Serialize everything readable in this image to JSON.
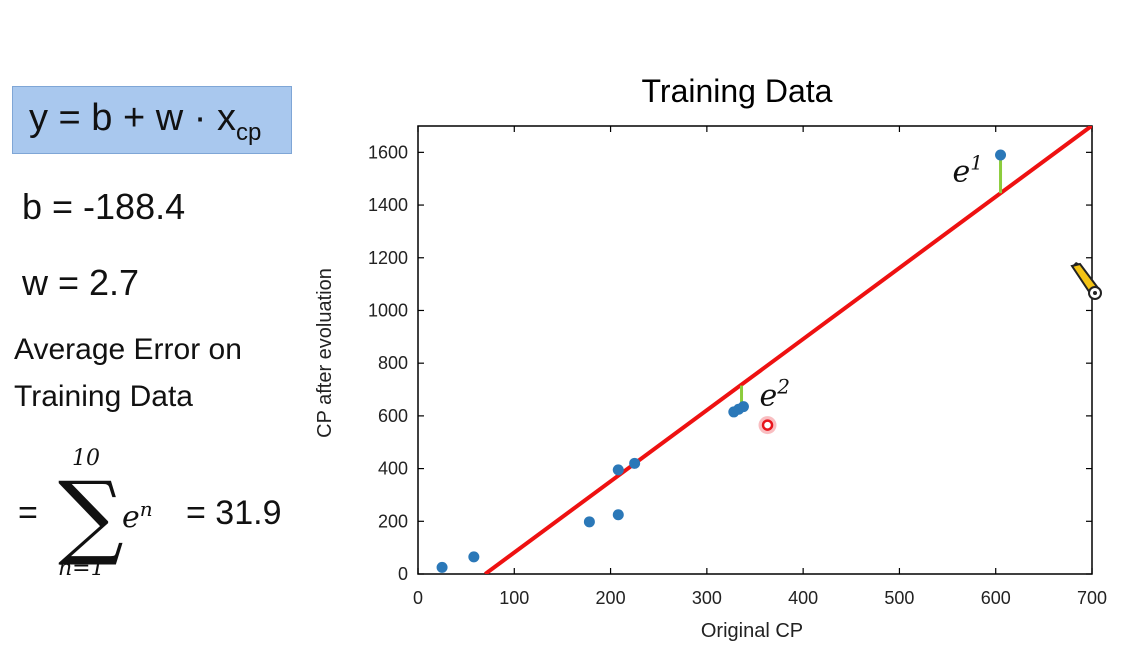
{
  "left_panel": {
    "formula_y": "y = b + w · x",
    "formula_sub": "cp",
    "b_text": "b = -188.4",
    "w_text": "w = 2.7",
    "avg_line1": "Average Error on",
    "avg_line2": "Training Data",
    "equals": "=",
    "sum_upper": "10",
    "sum_lower": "n=1",
    "sum_term_base": "e",
    "sum_term_exp": "n",
    "result": "= 31.9"
  },
  "colors": {
    "formula_box": "#a9c8ee",
    "points": "#2b78b8",
    "regression_line": "#ee1111",
    "error_bar": "#8ccc3c",
    "highlight": "#e8141b"
  },
  "chart_data": {
    "type": "scatter",
    "title": "Training Data",
    "xlabel": "Original CP",
    "ylabel": "CP after evoluation",
    "xlim": [
      0,
      700
    ],
    "ylim": [
      0,
      1700
    ],
    "xticks": [
      0,
      100,
      200,
      300,
      400,
      500,
      600,
      700
    ],
    "yticks": [
      0,
      200,
      400,
      600,
      800,
      1000,
      1200,
      1400,
      1600
    ],
    "grid": false,
    "points": [
      {
        "x": 25,
        "y": 25
      },
      {
        "x": 58,
        "y": 65
      },
      {
        "x": 178,
        "y": 198
      },
      {
        "x": 208,
        "y": 225
      },
      {
        "x": 208,
        "y": 395
      },
      {
        "x": 225,
        "y": 420
      },
      {
        "x": 328,
        "y": 615
      },
      {
        "x": 333,
        "y": 625
      },
      {
        "x": 338,
        "y": 635
      },
      {
        "x": 605,
        "y": 1590
      }
    ],
    "line": {
      "b": -188.4,
      "w": 2.7
    },
    "error_bars": [
      {
        "label_base": "e",
        "label_exp": "1",
        "x": 605,
        "y_from": 1445,
        "y_to": 1585
      },
      {
        "label_base": "e",
        "label_exp": "2",
        "x": 336,
        "y_from": 640,
        "y_to": 715
      }
    ],
    "highlight_point": {
      "x": 363,
      "y": 565
    }
  }
}
